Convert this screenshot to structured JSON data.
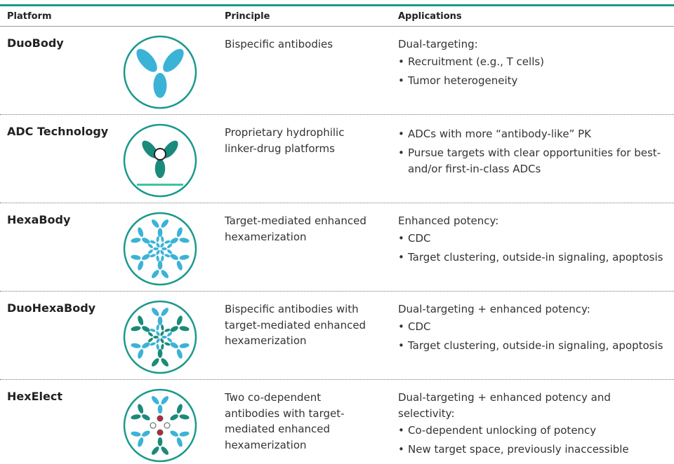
{
  "table": {
    "header": [
      "Platform",
      "Principle",
      "Applications"
    ],
    "rows": [
      {
        "platform": "DuoBody",
        "principle": [
          "Bispecific antibodies"
        ],
        "applications": {
          "intro": "Dual-targeting:",
          "bullets": [
            "Recruitment (e.g., T cells)",
            "Tumor heterogeneity"
          ]
        }
      },
      {
        "platform": "ADC Technology",
        "principle": [
          "Proprietary hydrophilic",
          "linker-drug platforms"
        ],
        "applications": {
          "bullets": [
            "ADCs with more “antibody-like” PK",
            "Pursue targets with clear opportunities for best-and/or first-in-class ADCs"
          ]
        }
      },
      {
        "platform": "HexaBody",
        "principle": [
          "Target-mediated enhanced",
          "hexamerization"
        ],
        "applications": {
          "intro": "Enhanced potency:",
          "bullets": [
            "CDC",
            "Target clustering, outside-in signaling, apoptosis"
          ]
        }
      },
      {
        "platform": "DuoHexaBody",
        "principle": [
          "Bispecific antibodies with",
          "target-mediated enhanced",
          "hexamerization"
        ],
        "applications": {
          "intro": "Dual-targeting + enhanced potency:",
          "bullets": [
            "CDC",
            "Target clustering, outside-in signaling, apoptosis"
          ]
        }
      },
      {
        "platform": "HexElect",
        "principle": [
          "Two co-dependent",
          "antibodies with target-",
          "mediated enhanced",
          "hexamerization"
        ],
        "applications": {
          "intro": "Dual-targeting + enhanced potency and selectivity:",
          "bullets": [
            "Co-dependent unlocking of potency",
            "New target space, previously inaccessible"
          ]
        }
      }
    ]
  }
}
